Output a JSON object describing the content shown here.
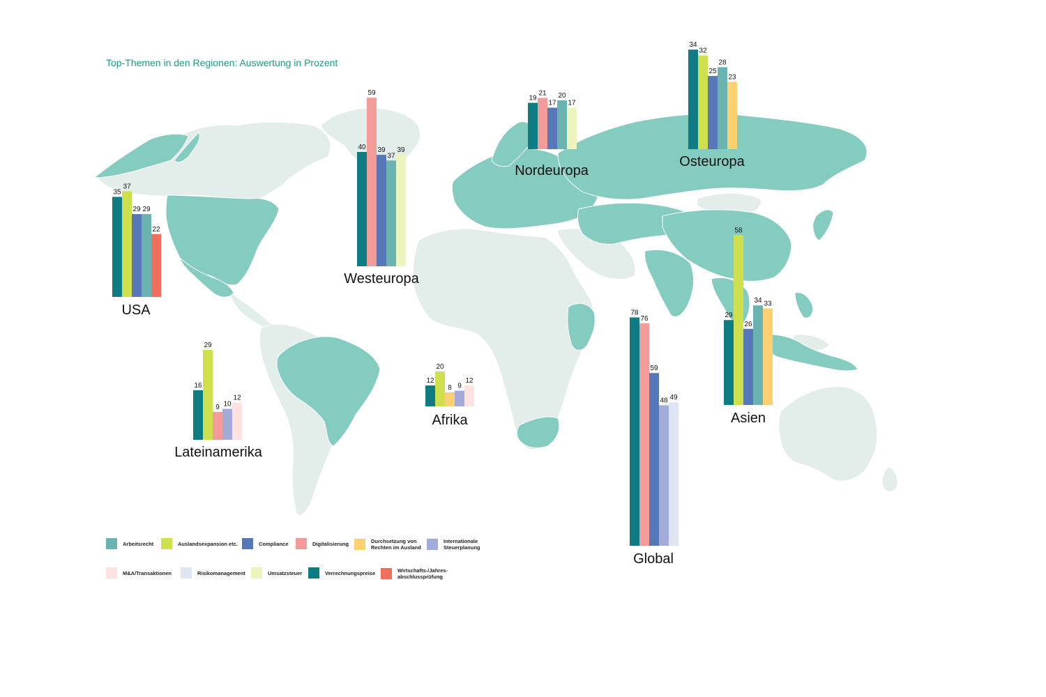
{
  "title": "Top-Themen in den Regionen: Auswertung in Prozent",
  "legend": [
    {
      "key": "arbeitsrecht",
      "label": "Arbeitsrecht",
      "color": "#6bb3b0"
    },
    {
      "key": "auslandsexpansion",
      "label": "Auslandsexpansion etc.",
      "color": "#cfe04f"
    },
    {
      "key": "compliance",
      "label": "Compliance",
      "color": "#5677b8"
    },
    {
      "key": "digitalisierung",
      "label": "Digitalisierung",
      "color": "#f29b98"
    },
    {
      "key": "durchsetzung",
      "label": "Durchsetzung von\nRechten im Ausland",
      "color": "#fdd172"
    },
    {
      "key": "int_steuer",
      "label": "Internationale\nSteuerplanung",
      "color": "#a3acd9"
    },
    {
      "key": "ma",
      "label": "M&A/Transaktionen",
      "color": "#fde2e1"
    },
    {
      "key": "risiko",
      "label": "Risikomanagement",
      "color": "#e1e4f2"
    },
    {
      "key": "umsatzsteuer",
      "label": "Umsatzsteuer",
      "color": "#eef4be"
    },
    {
      "key": "verrechnungspreise",
      "label": "Verrechnungspreise",
      "color": "#0f7c84"
    },
    {
      "key": "wirtschaftspruefung",
      "label": "Wirtschafts-/Jahres-\nabschlussprüfung",
      "color": "#ef6e5d"
    }
  ],
  "chart_data": [
    {
      "type": "bar",
      "region": "USA",
      "categories": [
        "Verrechnungspreise",
        "Auslandsexpansion etc.",
        "Compliance",
        "Arbeitsrecht",
        "Wirtschafts-/Jahresabschlussprüfung"
      ],
      "values": [
        35,
        37,
        29,
        29,
        22
      ]
    },
    {
      "type": "bar",
      "region": "Westeuropa",
      "categories": [
        "Verrechnungspreise",
        "Digitalisierung",
        "Compliance",
        "Arbeitsrecht",
        "Umsatzsteuer"
      ],
      "values": [
        40,
        59,
        39,
        37,
        39
      ]
    },
    {
      "type": "bar",
      "region": "Nordeuropa",
      "categories": [
        "Verrechnungspreise",
        "Digitalisierung",
        "Compliance",
        "Arbeitsrecht",
        "Umsatzsteuer"
      ],
      "values": [
        19,
        21,
        17,
        20,
        17
      ]
    },
    {
      "type": "bar",
      "region": "Osteuropa",
      "categories": [
        "Verrechnungspreise",
        "Auslandsexpansion etc.",
        "Compliance",
        "Arbeitsrecht",
        "Durchsetzung von Rechten im Ausland"
      ],
      "values": [
        34,
        32,
        25,
        28,
        23
      ]
    },
    {
      "type": "bar",
      "region": "Asien",
      "categories": [
        "Verrechnungspreise",
        "Auslandsexpansion etc.",
        "Compliance",
        "Arbeitsrecht",
        "Durchsetzung von Rechten im Ausland"
      ],
      "values": [
        29,
        58,
        26,
        34,
        33
      ]
    },
    {
      "type": "bar",
      "region": "Lateinamerika",
      "categories": [
        "Verrechnungspreise",
        "Auslandsexpansion etc.",
        "Digitalisierung",
        "Internationale Steuerplanung",
        "M&A/Transaktionen"
      ],
      "values": [
        16,
        29,
        9,
        10,
        12
      ]
    },
    {
      "type": "bar",
      "region": "Afrika",
      "categories": [
        "Verrechnungspreise",
        "Auslandsexpansion etc.",
        "Durchsetzung von Rechten im Ausland",
        "Internationale Steuerplanung",
        "M&A/Transaktionen"
      ],
      "values": [
        12,
        20,
        8,
        9,
        12
      ]
    },
    {
      "type": "bar",
      "region": "Global",
      "categories": [
        "Verrechnungspreise",
        "Digitalisierung",
        "Compliance",
        "Internationale Steuerplanung",
        "Risikomanagement"
      ],
      "values": [
        78,
        76,
        59,
        48,
        49
      ]
    }
  ]
}
